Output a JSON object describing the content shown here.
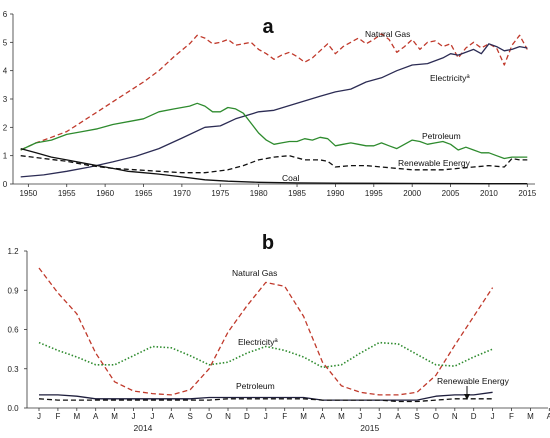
{
  "chart_data": [
    {
      "type": "line",
      "panel_label": "a",
      "title": "",
      "xlabel": "",
      "ylabel": "",
      "xlim": [
        1948,
        2016
      ],
      "ylim": [
        0,
        6
      ],
      "x_ticks": [
        1950,
        1955,
        1960,
        1965,
        1970,
        1975,
        1980,
        1985,
        1990,
        1995,
        2000,
        2005,
        2010,
        2015
      ],
      "y_ticks": [
        0,
        1,
        2,
        3,
        4,
        5,
        6
      ],
      "grid": false,
      "legend": "inline labels",
      "series": [
        {
          "name": "Natural Gas",
          "color": "#c0392b",
          "dash": "dashed",
          "points": [
            [
              1949,
              1.2
            ],
            [
              1951,
              1.45
            ],
            [
              1953,
              1.65
            ],
            [
              1955,
              1.85
            ],
            [
              1957,
              2.2
            ],
            [
              1959,
              2.55
            ],
            [
              1961,
              2.9
            ],
            [
              1963,
              3.25
            ],
            [
              1965,
              3.6
            ],
            [
              1967,
              4.0
            ],
            [
              1969,
              4.5
            ],
            [
              1971,
              4.95
            ],
            [
              1972,
              5.25
            ],
            [
              1973,
              5.15
            ],
            [
              1974,
              4.95
            ],
            [
              1975,
              5.0
            ],
            [
              1976,
              5.1
            ],
            [
              1977,
              4.9
            ],
            [
              1978,
              4.95
            ],
            [
              1979,
              5.0
            ],
            [
              1980,
              4.75
            ],
            [
              1981,
              4.6
            ],
            [
              1982,
              4.4
            ],
            [
              1983,
              4.55
            ],
            [
              1984,
              4.65
            ],
            [
              1985,
              4.5
            ],
            [
              1986,
              4.3
            ],
            [
              1987,
              4.45
            ],
            [
              1988,
              4.7
            ],
            [
              1989,
              4.95
            ],
            [
              1990,
              4.6
            ],
            [
              1991,
              4.85
            ],
            [
              1992,
              5.0
            ],
            [
              1993,
              5.15
            ],
            [
              1994,
              4.95
            ],
            [
              1995,
              5.1
            ],
            [
              1996,
              5.3
            ],
            [
              1997,
              5.1
            ],
            [
              1998,
              4.65
            ],
            [
              1999,
              4.85
            ],
            [
              2000,
              5.1
            ],
            [
              2001,
              4.75
            ],
            [
              2002,
              5.0
            ],
            [
              2003,
              5.05
            ],
            [
              2004,
              4.85
            ],
            [
              2005,
              4.95
            ],
            [
              2006,
              4.45
            ],
            [
              2007,
              4.8
            ],
            [
              2008,
              5.0
            ],
            [
              2009,
              4.8
            ],
            [
              2010,
              4.95
            ],
            [
              2011,
              4.8
            ],
            [
              2012,
              4.2
            ],
            [
              2013,
              4.9
            ],
            [
              2014,
              5.25
            ],
            [
              2015,
              4.75
            ]
          ]
        },
        {
          "name": "Electricity",
          "name_superscript": "a",
          "color": "#2c2c54",
          "dash": "solid",
          "points": [
            [
              1949,
              0.25
            ],
            [
              1952,
              0.32
            ],
            [
              1955,
              0.45
            ],
            [
              1958,
              0.6
            ],
            [
              1961,
              0.78
            ],
            [
              1964,
              0.98
            ],
            [
              1967,
              1.25
            ],
            [
              1970,
              1.62
            ],
            [
              1973,
              2.0
            ],
            [
              1975,
              2.05
            ],
            [
              1977,
              2.3
            ],
            [
              1980,
              2.55
            ],
            [
              1982,
              2.6
            ],
            [
              1985,
              2.85
            ],
            [
              1988,
              3.1
            ],
            [
              1990,
              3.25
            ],
            [
              1992,
              3.35
            ],
            [
              1994,
              3.6
            ],
            [
              1996,
              3.75
            ],
            [
              1998,
              4.0
            ],
            [
              2000,
              4.2
            ],
            [
              2002,
              4.25
            ],
            [
              2004,
              4.45
            ],
            [
              2005,
              4.6
            ],
            [
              2006,
              4.55
            ],
            [
              2008,
              4.75
            ],
            [
              2009,
              4.6
            ],
            [
              2010,
              4.95
            ],
            [
              2011,
              4.85
            ],
            [
              2012,
              4.7
            ],
            [
              2013,
              4.75
            ],
            [
              2014,
              4.85
            ],
            [
              2015,
              4.8
            ]
          ]
        },
        {
          "name": "Petroleum",
          "color": "#2e8b2e",
          "dash": "solid",
          "points": [
            [
              1949,
              1.2
            ],
            [
              1951,
              1.45
            ],
            [
              1953,
              1.55
            ],
            [
              1955,
              1.75
            ],
            [
              1957,
              1.85
            ],
            [
              1959,
              1.95
            ],
            [
              1961,
              2.1
            ],
            [
              1963,
              2.2
            ],
            [
              1965,
              2.3
            ],
            [
              1967,
              2.55
            ],
            [
              1969,
              2.65
            ],
            [
              1971,
              2.75
            ],
            [
              1972,
              2.85
            ],
            [
              1973,
              2.75
            ],
            [
              1974,
              2.55
            ],
            [
              1975,
              2.55
            ],
            [
              1976,
              2.7
            ],
            [
              1977,
              2.65
            ],
            [
              1978,
              2.5
            ],
            [
              1979,
              2.15
            ],
            [
              1980,
              1.8
            ],
            [
              1981,
              1.55
            ],
            [
              1982,
              1.4
            ],
            [
              1983,
              1.45
            ],
            [
              1984,
              1.5
            ],
            [
              1985,
              1.5
            ],
            [
              1986,
              1.6
            ],
            [
              1987,
              1.55
            ],
            [
              1988,
              1.65
            ],
            [
              1989,
              1.6
            ],
            [
              1990,
              1.35
            ],
            [
              1991,
              1.4
            ],
            [
              1992,
              1.45
            ],
            [
              1993,
              1.4
            ],
            [
              1994,
              1.35
            ],
            [
              1995,
              1.35
            ],
            [
              1996,
              1.45
            ],
            [
              1997,
              1.35
            ],
            [
              1998,
              1.25
            ],
            [
              1999,
              1.4
            ],
            [
              2000,
              1.55
            ],
            [
              2001,
              1.5
            ],
            [
              2002,
              1.4
            ],
            [
              2003,
              1.45
            ],
            [
              2004,
              1.5
            ],
            [
              2005,
              1.4
            ],
            [
              2006,
              1.2
            ],
            [
              2007,
              1.3
            ],
            [
              2008,
              1.2
            ],
            [
              2009,
              1.1
            ],
            [
              2010,
              1.1
            ],
            [
              2011,
              1.0
            ],
            [
              2012,
              0.9
            ],
            [
              2013,
              0.95
            ],
            [
              2014,
              0.95
            ],
            [
              2015,
              0.95
            ]
          ]
        },
        {
          "name": "Renewable Energy",
          "color": "#111111",
          "dash": "dashed",
          "points": [
            [
              1949,
              1.0
            ],
            [
              1952,
              0.9
            ],
            [
              1955,
              0.8
            ],
            [
              1958,
              0.65
            ],
            [
              1961,
              0.55
            ],
            [
              1964,
              0.5
            ],
            [
              1967,
              0.45
            ],
            [
              1970,
              0.4
            ],
            [
              1973,
              0.4
            ],
            [
              1976,
              0.5
            ],
            [
              1978,
              0.65
            ],
            [
              1980,
              0.85
            ],
            [
              1982,
              0.95
            ],
            [
              1984,
              1.0
            ],
            [
              1986,
              0.85
            ],
            [
              1988,
              0.85
            ],
            [
              1989,
              0.8
            ],
            [
              1990,
              0.6
            ],
            [
              1992,
              0.65
            ],
            [
              1994,
              0.65
            ],
            [
              1996,
              0.6
            ],
            [
              1998,
              0.55
            ],
            [
              2000,
              0.5
            ],
            [
              2002,
              0.5
            ],
            [
              2004,
              0.5
            ],
            [
              2006,
              0.55
            ],
            [
              2008,
              0.6
            ],
            [
              2010,
              0.65
            ],
            [
              2012,
              0.6
            ],
            [
              2013,
              0.9
            ],
            [
              2014,
              0.85
            ],
            [
              2015,
              0.85
            ]
          ]
        },
        {
          "name": "Coal",
          "color": "#111111",
          "dash": "solid",
          "points": [
            [
              1949,
              1.25
            ],
            [
              1951,
              1.1
            ],
            [
              1953,
              0.95
            ],
            [
              1955,
              0.85
            ],
            [
              1957,
              0.75
            ],
            [
              1959,
              0.65
            ],
            [
              1961,
              0.55
            ],
            [
              1963,
              0.45
            ],
            [
              1965,
              0.4
            ],
            [
              1967,
              0.35
            ],
            [
              1970,
              0.25
            ],
            [
              1973,
              0.15
            ],
            [
              1976,
              0.1
            ],
            [
              1980,
              0.06
            ],
            [
              1985,
              0.04
            ],
            [
              1990,
              0.03
            ],
            [
              2000,
              0.02
            ],
            [
              2010,
              0.01
            ],
            [
              2015,
              0.01
            ]
          ]
        }
      ]
    },
    {
      "type": "line",
      "panel_label": "b",
      "title": "",
      "xlabel": "",
      "ylabel": "",
      "x_categories": [
        "J",
        "F",
        "M",
        "A",
        "M",
        "J",
        "J",
        "A",
        "S",
        "O",
        "N",
        "D",
        "J",
        "F",
        "M",
        "A",
        "M",
        "J",
        "J",
        "A",
        "S",
        "O",
        "N",
        "D",
        "J",
        "F",
        "M",
        "A"
      ],
      "year_labels": [
        {
          "label": "2014",
          "at_index": 5.5
        },
        {
          "label": "2015",
          "at_index": 17.5
        }
      ],
      "ylim": [
        0,
        1.2
      ],
      "y_ticks": [
        0.0,
        0.3,
        0.6,
        0.9,
        1.2
      ],
      "y_tick_labels": [
        "0.0",
        "0.3",
        "0.6",
        "0.9",
        "1.2"
      ],
      "grid": false,
      "legend": "inline labels",
      "series": [
        {
          "name": "Natural Gas",
          "color": "#c0392b",
          "dash": "dashed",
          "values": [
            1.07,
            0.88,
            0.72,
            0.42,
            0.2,
            0.13,
            0.11,
            0.1,
            0.14,
            0.3,
            0.58,
            0.78,
            0.96,
            0.93,
            0.7,
            0.35,
            0.17,
            0.12,
            0.1,
            0.1,
            0.12,
            0.25,
            0.48,
            0.7,
            0.92
          ]
        },
        {
          "name": "Electricity",
          "name_superscript": "a",
          "color": "#2e8b2e",
          "dash": "dotted",
          "values": [
            0.5,
            0.44,
            0.39,
            0.33,
            0.33,
            0.4,
            0.47,
            0.46,
            0.4,
            0.33,
            0.35,
            0.42,
            0.47,
            0.44,
            0.39,
            0.31,
            0.33,
            0.42,
            0.5,
            0.49,
            0.41,
            0.33,
            0.32,
            0.39,
            0.45
          ]
        },
        {
          "name": "Petroleum",
          "color": "#1f1f3d",
          "dash": "solid",
          "values": [
            0.1,
            0.1,
            0.09,
            0.07,
            0.07,
            0.07,
            0.07,
            0.07,
            0.07,
            0.08,
            0.08,
            0.08,
            0.08,
            0.08,
            0.08,
            0.06,
            0.06,
            0.06,
            0.06,
            0.06,
            0.06,
            0.09,
            0.1,
            0.1,
            0.12
          ]
        },
        {
          "name": "Renewable Energy",
          "color": "#111111",
          "dash": "dashed",
          "values": [
            0.07,
            0.06,
            0.06,
            0.06,
            0.06,
            0.06,
            0.06,
            0.06,
            0.06,
            0.06,
            0.07,
            0.07,
            0.07,
            0.07,
            0.07,
            0.06,
            0.06,
            0.06,
            0.06,
            0.05,
            0.05,
            0.06,
            0.07,
            0.07,
            0.07
          ]
        }
      ]
    }
  ]
}
